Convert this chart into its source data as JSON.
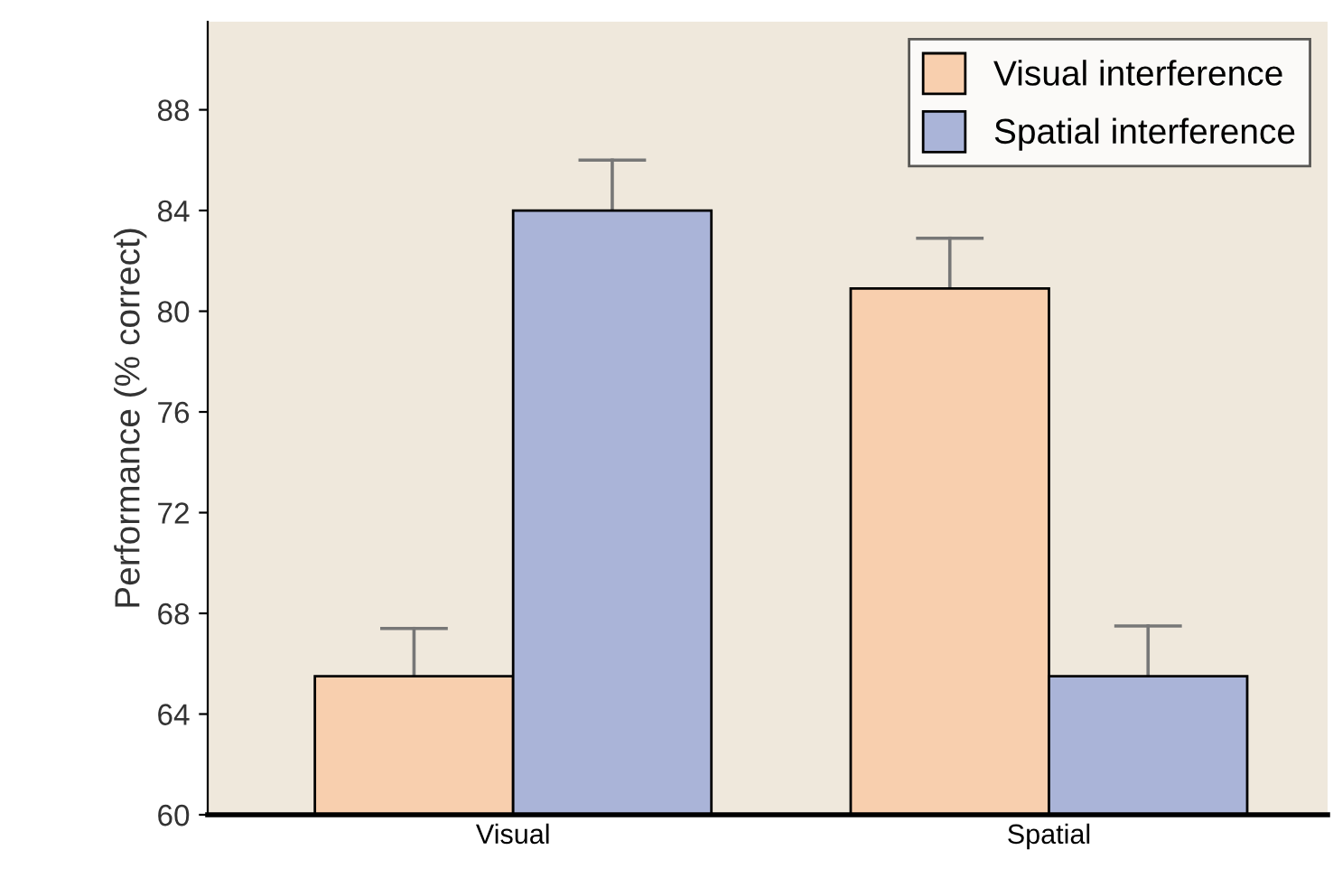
{
  "chart_data": {
    "type": "bar",
    "ylabel": "Performance (% correct)",
    "categories": [
      "Visual",
      "Spatial"
    ],
    "series": [
      {
        "name": "Visual interference",
        "color": "#f8cfae",
        "values": [
          65.5,
          80.9
        ],
        "errors": [
          [
            65.5,
            67.4
          ],
          [
            80.9,
            82.9
          ]
        ]
      },
      {
        "name": "Spatial interference",
        "color": "#aab4d8",
        "values": [
          84.0,
          65.5
        ],
        "errors": [
          [
            84.0,
            86.0
          ],
          [
            65.5,
            67.5
          ]
        ]
      }
    ],
    "ylim": [
      60,
      91.5
    ],
    "yticks": [
      60,
      64,
      68,
      72,
      76,
      80,
      84,
      88
    ],
    "grid": false,
    "legend": "top right"
  }
}
